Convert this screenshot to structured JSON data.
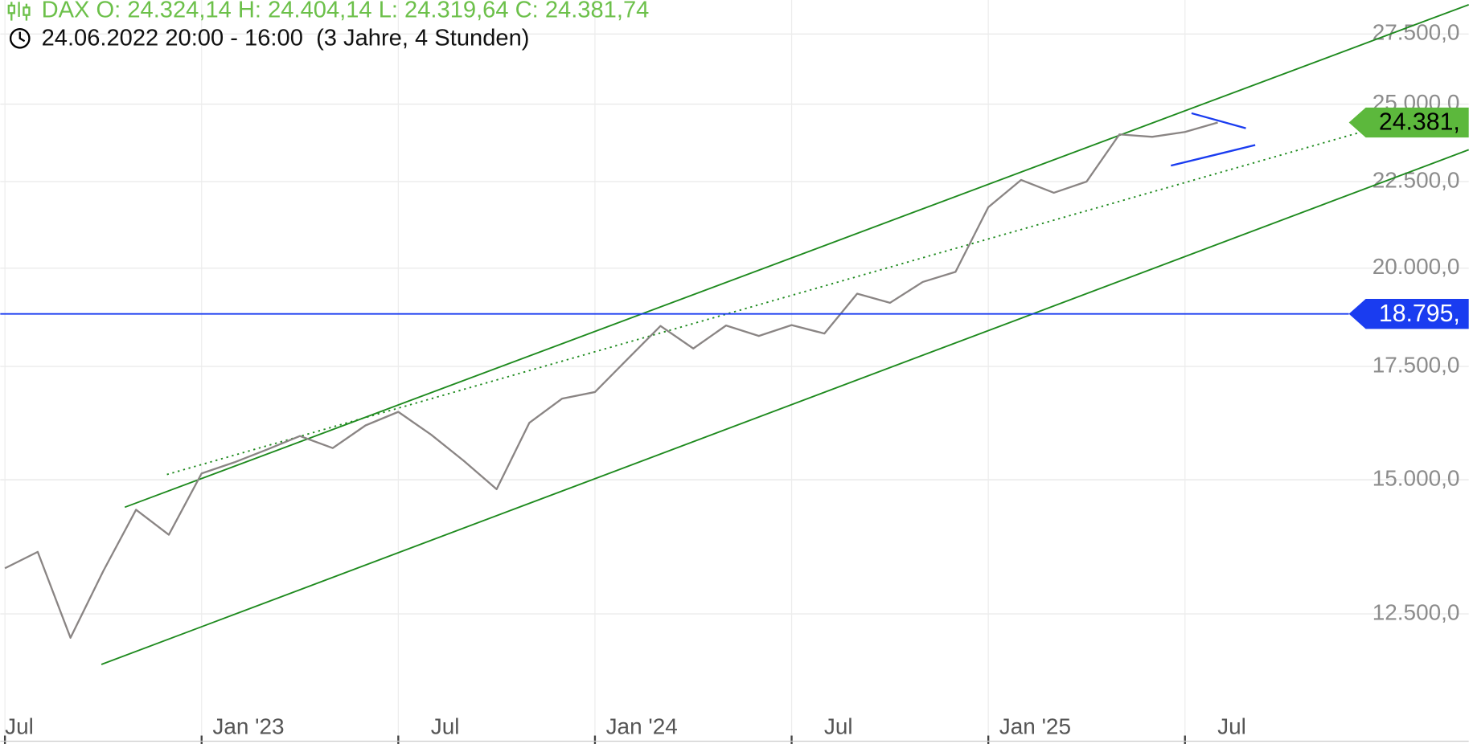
{
  "chart_data": {
    "type": "line",
    "title": "DAX O: 24.324,14 H: 24.404,14 L: 24.319,64 C: 24.381,74",
    "subtitle": "24.06.2022 20:00 - 16:00  (3 Jahre, 4 Stunden)",
    "title_color": "#6cc04a",
    "log_scale": true,
    "grid": true,
    "xlim": [
      "2022-07",
      "2026-03"
    ],
    "xticks": [
      {
        "value": "2022-07",
        "label": "Jul"
      },
      {
        "value": "2023-01",
        "label": "Jan '23"
      },
      {
        "value": "2023-07",
        "label": "Jul"
      },
      {
        "value": "2024-01",
        "label": "Jan '24"
      },
      {
        "value": "2024-07",
        "label": "Jul"
      },
      {
        "value": "2025-01",
        "label": "Jan '25"
      },
      {
        "value": "2025-07",
        "label": "Jul"
      }
    ],
    "ylim": [
      10950,
      28800
    ],
    "yticks": [
      {
        "value": 12500,
        "label": "12.500,0"
      },
      {
        "value": 15000,
        "label": "15.000,0"
      },
      {
        "value": 17500,
        "label": "17.500,0"
      },
      {
        "value": 20000,
        "label": "20.000,0"
      },
      {
        "value": 22500,
        "label": "22.500,0"
      },
      {
        "value": 25000,
        "label": "25.000,0"
      },
      {
        "value": 27500,
        "label": "27.500,0"
      }
    ],
    "series": [
      {
        "name": "DAX",
        "color": "#8a8584",
        "x": [
          "2022-07",
          "2022-08",
          "2022-09",
          "2022-10",
          "2022-11",
          "2022-12",
          "2023-01",
          "2023-02",
          "2023-03",
          "2023-04",
          "2023-05",
          "2023-06",
          "2023-07",
          "2023-08",
          "2023-09",
          "2023-10",
          "2023-11",
          "2023-12",
          "2024-01",
          "2024-02",
          "2024-03",
          "2024-04",
          "2024-05",
          "2024-06",
          "2024-07",
          "2024-08",
          "2024-09",
          "2024-10",
          "2024-11",
          "2024-12",
          "2025-01",
          "2025-02",
          "2025-03",
          "2025-04",
          "2025-05",
          "2025-06",
          "2025-07",
          "2025-08"
        ],
        "values": [
          13300,
          13600,
          12100,
          13250,
          14400,
          13920,
          15130,
          15360,
          15630,
          15920,
          15660,
          16150,
          16450,
          15950,
          15390,
          14810,
          16210,
          16750,
          16900,
          17680,
          18490,
          17930,
          18500,
          18240,
          18510,
          18300,
          19320,
          19080,
          19630,
          19900,
          21730,
          22550,
          22160,
          22500,
          23990,
          23910,
          24070,
          24381.74
        ]
      }
    ],
    "price_lines": [
      {
        "value": 18795,
        "label": "18.795,",
        "color": "#1a3cf0",
        "text_color": "#ffffff",
        "line": true
      },
      {
        "value": 24381.74,
        "label": "24.381,",
        "color": "#5cb83c",
        "text_color": "#000000",
        "line": false
      }
    ]
  }
}
